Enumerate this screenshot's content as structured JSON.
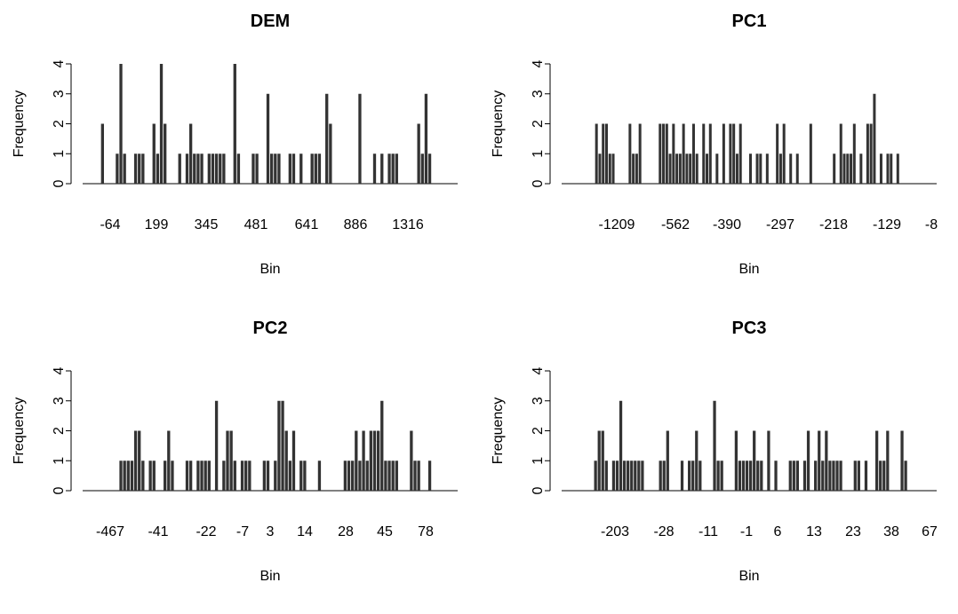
{
  "chart_data": [
    {
      "type": "bar",
      "title": "DEM",
      "xlabel": "Bin",
      "ylabel": "Frequency",
      "ylim": [
        0,
        4
      ],
      "yticks": [
        0,
        1,
        2,
        3,
        4
      ],
      "xtick_labels": [
        "-64",
        "199",
        "345",
        "481",
        "641",
        "886",
        "1316"
      ],
      "values": [
        0,
        0,
        0,
        0,
        0,
        2,
        0,
        0,
        0,
        1,
        4,
        1,
        0,
        0,
        1,
        1,
        1,
        0,
        0,
        2,
        1,
        4,
        2,
        0,
        0,
        0,
        1,
        0,
        1,
        2,
        1,
        1,
        1,
        0,
        1,
        1,
        1,
        1,
        1,
        0,
        0,
        4,
        1,
        0,
        0,
        0,
        1,
        1,
        0,
        0,
        3,
        1,
        1,
        1,
        0,
        0,
        1,
        1,
        0,
        1,
        0,
        0,
        1,
        1,
        1,
        0,
        3,
        2,
        0,
        0,
        0,
        0,
        0,
        0,
        0,
        3,
        0,
        0,
        0,
        1,
        0,
        1,
        0,
        1,
        1,
        1,
        0,
        0,
        0,
        0,
        0,
        2,
        1,
        3,
        1,
        0,
        0,
        0,
        0,
        0,
        0,
        0
      ]
    },
    {
      "type": "bar",
      "title": "PC1",
      "xlabel": "Bin",
      "ylabel": "Frequency",
      "ylim": [
        0,
        4
      ],
      "yticks": [
        0,
        1,
        2,
        3,
        4
      ],
      "xtick_labels": [
        "-1209",
        "-562",
        "-390",
        "-297",
        "-218",
        "-129",
        "-8"
      ],
      "values": [
        0,
        0,
        0,
        0,
        0,
        0,
        0,
        0,
        0,
        0,
        2,
        1,
        2,
        2,
        1,
        1,
        0,
        0,
        0,
        0,
        2,
        1,
        1,
        2,
        0,
        0,
        0,
        0,
        0,
        2,
        2,
        2,
        1,
        2,
        1,
        1,
        2,
        1,
        1,
        2,
        1,
        0,
        2,
        1,
        2,
        0,
        1,
        0,
        2,
        0,
        2,
        2,
        1,
        2,
        0,
        0,
        1,
        0,
        1,
        1,
        0,
        1,
        0,
        0,
        2,
        1,
        2,
        0,
        1,
        0,
        1,
        0,
        0,
        0,
        2,
        0,
        0,
        0,
        0,
        0,
        0,
        1,
        0,
        2,
        1,
        1,
        1,
        2,
        0,
        1,
        0,
        2,
        2,
        3,
        0,
        1,
        0,
        1,
        1,
        0,
        1,
        0,
        0,
        0,
        0,
        0,
        0,
        0,
        0,
        0,
        0,
        0
      ]
    },
    {
      "type": "bar",
      "title": "PC2",
      "xlabel": "Bin",
      "ylabel": "Frequency",
      "ylim": [
        0,
        4
      ],
      "yticks": [
        0,
        1,
        2,
        3,
        4
      ],
      "xtick_labels": [
        "-467",
        "-41",
        "-22",
        "-7",
        "3",
        "14",
        "28",
        "45",
        "78"
      ],
      "values": [
        0,
        0,
        0,
        0,
        0,
        0,
        0,
        0,
        0,
        0,
        1,
        1,
        1,
        1,
        2,
        2,
        1,
        0,
        1,
        1,
        0,
        0,
        1,
        2,
        1,
        0,
        0,
        0,
        1,
        1,
        0,
        1,
        1,
        1,
        1,
        0,
        3,
        0,
        1,
        2,
        2,
        1,
        0,
        1,
        1,
        1,
        0,
        0,
        0,
        1,
        1,
        0,
        1,
        3,
        3,
        2,
        1,
        2,
        0,
        1,
        1,
        0,
        0,
        0,
        1,
        0,
        0,
        0,
        0,
        0,
        0,
        1,
        1,
        1,
        2,
        1,
        2,
        1,
        2,
        2,
        2,
        3,
        1,
        1,
        1,
        1,
        0,
        0,
        0,
        2,
        1,
        1,
        0,
        0,
        1,
        0,
        0,
        0,
        0,
        0,
        0,
        0
      ]
    },
    {
      "type": "bar",
      "title": "PC3",
      "xlabel": "Bin",
      "ylabel": "Frequency",
      "ylim": [
        0,
        4
      ],
      "yticks": [
        0,
        1,
        2,
        3,
        4
      ],
      "xtick_labels": [
        "-203",
        "-28",
        "-11",
        "-1",
        "6",
        "13",
        "23",
        "38",
        "67"
      ],
      "values": [
        0,
        0,
        0,
        0,
        0,
        0,
        0,
        0,
        0,
        1,
        2,
        2,
        1,
        0,
        1,
        1,
        3,
        1,
        1,
        1,
        1,
        1,
        1,
        0,
        0,
        0,
        0,
        1,
        1,
        2,
        0,
        0,
        0,
        1,
        0,
        1,
        1,
        2,
        1,
        0,
        0,
        0,
        3,
        1,
        1,
        0,
        0,
        0,
        2,
        1,
        1,
        1,
        1,
        2,
        1,
        1,
        0,
        2,
        0,
        1,
        0,
        0,
        0,
        1,
        1,
        1,
        0,
        1,
        2,
        0,
        1,
        2,
        1,
        2,
        1,
        1,
        1,
        1,
        0,
        0,
        0,
        1,
        1,
        0,
        1,
        0,
        0,
        2,
        1,
        1,
        2,
        0,
        0,
        0,
        2,
        1,
        0,
        0,
        0,
        0,
        0,
        0,
        0,
        0
      ]
    }
  ]
}
